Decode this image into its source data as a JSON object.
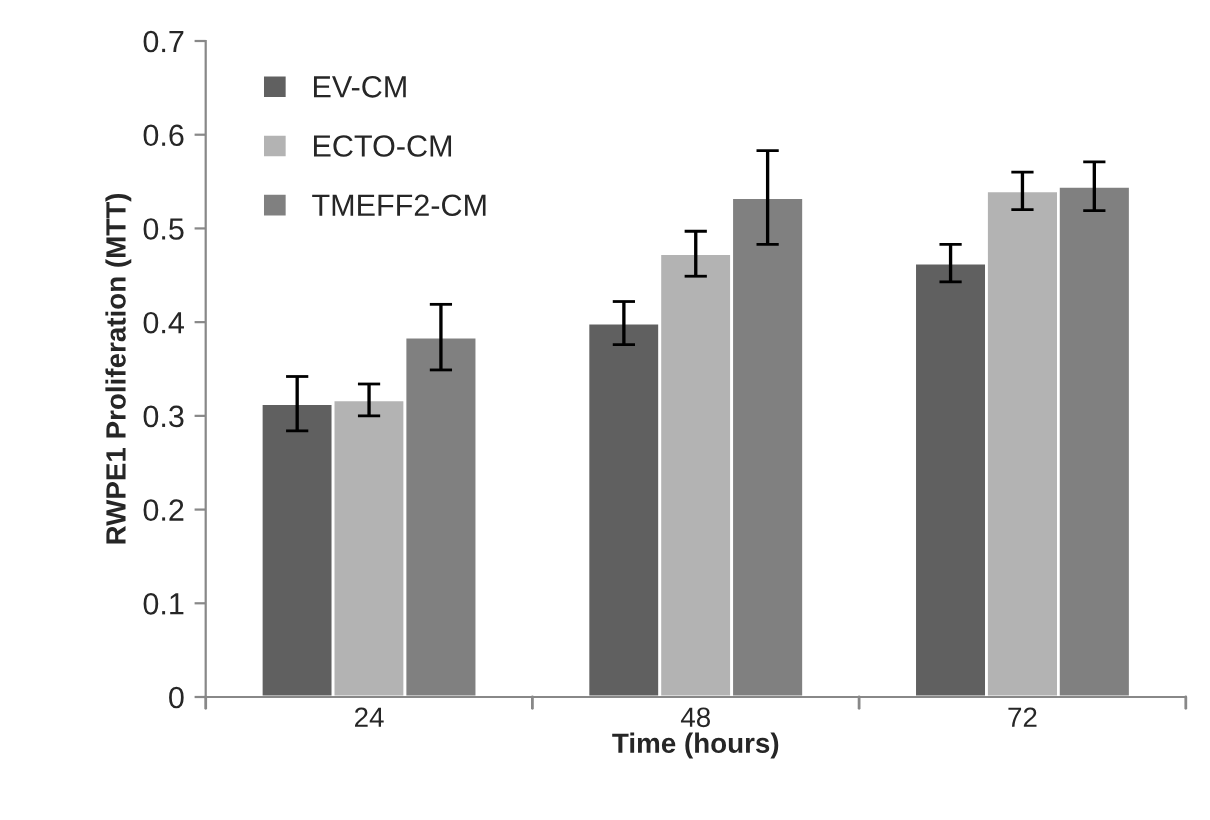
{
  "chart_data": {
    "type": "bar",
    "xlabel": "Time (hours)",
    "ylabel": "RWPE1 Proliferation (MTT)",
    "categories": [
      "24",
      "48",
      "72"
    ],
    "series": [
      {
        "name": "EV-CM",
        "color": "#606060",
        "values": [
          0.313,
          0.399,
          0.463
        ],
        "errors": [
          0.029,
          0.023,
          0.02
        ]
      },
      {
        "name": "ECTO-CM",
        "color": "#b3b3b3",
        "values": [
          0.317,
          0.473,
          0.54
        ],
        "errors": [
          0.017,
          0.024,
          0.02
        ]
      },
      {
        "name": "TMEFF2-CM",
        "color": "#808080",
        "values": [
          0.384,
          0.533,
          0.545
        ],
        "errors": [
          0.035,
          0.05,
          0.026
        ]
      }
    ],
    "ylim": [
      0,
      0.7
    ],
    "yticks": [
      0,
      0.1,
      0.2,
      0.3,
      0.4,
      0.5,
      0.6,
      0.7
    ],
    "grid": false,
    "legend": "top left"
  }
}
